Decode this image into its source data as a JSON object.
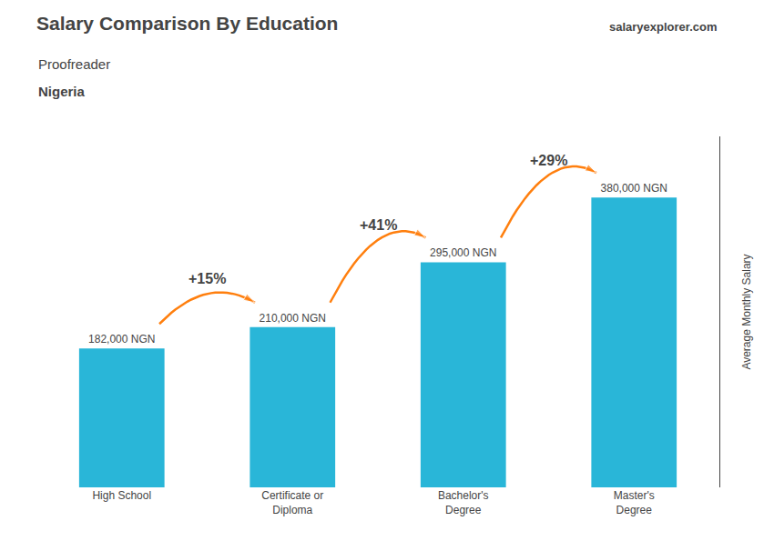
{
  "chart_data": {
    "type": "bar",
    "title": "Salary Comparison By Education",
    "subtitle": "Proofreader",
    "country": "Nigeria",
    "source": "salaryexplorer.com",
    "ylabel": "Average Monthly Salary",
    "categories": [
      "High School",
      "Certificate or\nDiploma",
      "Bachelor's\nDegree",
      "Master's\nDegree"
    ],
    "values": [
      182000,
      210000,
      295000,
      380000
    ],
    "value_labels": [
      "182,000 NGN",
      "210,000 NGN",
      "295,000 NGN",
      "380,000 NGN"
    ],
    "data_labels": true,
    "change_labels": [
      "+15%",
      "+41%",
      "+29%"
    ],
    "color": "#29b6d8",
    "ylim": [
      0,
      460000
    ],
    "yticks": [],
    "tick_labels": "x",
    "grid": false
  }
}
